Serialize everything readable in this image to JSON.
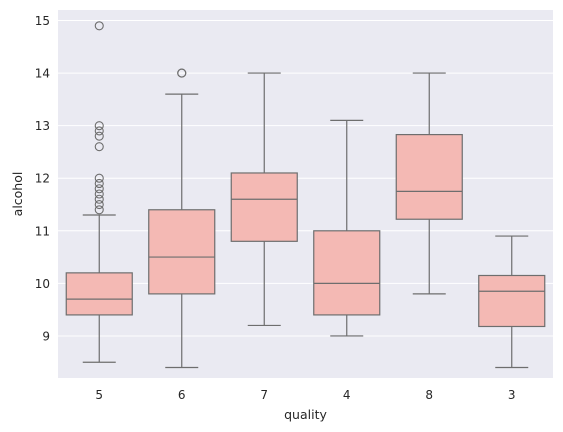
{
  "chart_data": {
    "type": "box",
    "title": "",
    "xlabel": "quality",
    "ylabel": "alcohol",
    "ylim": [
      8.2,
      15.2
    ],
    "yticks": [
      9,
      10,
      11,
      12,
      13,
      14,
      15
    ],
    "grid": true,
    "background": "#eaeaf2",
    "box_color": "#f4b9b4",
    "line_color": "#6e6e6e",
    "categories": [
      "5",
      "6",
      "7",
      "4",
      "8",
      "3"
    ],
    "boxes": [
      {
        "category": "5",
        "whisker_low": 8.5,
        "q1": 9.4,
        "median": 9.7,
        "q3": 10.2,
        "whisker_high": 11.3,
        "outliers": [
          11.4,
          11.5,
          11.6,
          11.7,
          11.8,
          11.9,
          12.0,
          12.6,
          12.8,
          12.9,
          13.0,
          14.9
        ]
      },
      {
        "category": "6",
        "whisker_low": 8.4,
        "q1": 9.8,
        "median": 10.5,
        "q3": 11.4,
        "whisker_high": 13.6,
        "outliers": [
          14.0,
          14.0
        ]
      },
      {
        "category": "7",
        "whisker_low": 9.2,
        "q1": 10.8,
        "median": 11.6,
        "q3": 12.1,
        "whisker_high": 14.0,
        "outliers": []
      },
      {
        "category": "4",
        "whisker_low": 9.0,
        "q1": 9.4,
        "median": 10.0,
        "q3": 11.0,
        "whisker_high": 13.1,
        "outliers": []
      },
      {
        "category": "8",
        "whisker_low": 9.8,
        "q1": 11.22,
        "median": 11.75,
        "q3": 12.83,
        "whisker_high": 14.0,
        "outliers": []
      },
      {
        "category": "3",
        "whisker_low": 8.4,
        "q1": 9.18,
        "median": 9.85,
        "q3": 10.15,
        "whisker_high": 10.9,
        "outliers": []
      }
    ]
  }
}
